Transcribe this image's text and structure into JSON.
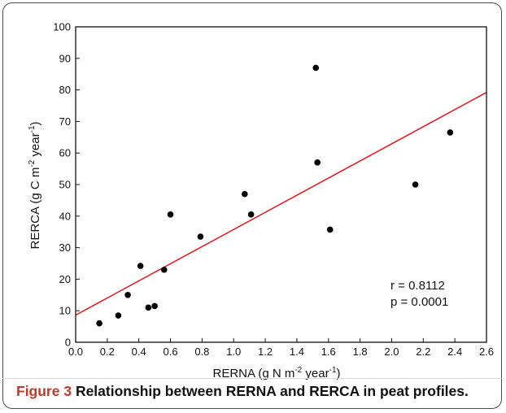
{
  "chart_data": {
    "type": "scatter",
    "xlabel": {
      "main": "RERNA (g N m",
      "sup1": "-2",
      "mid": " year",
      "sup2": "-1",
      "end": ")"
    },
    "ylabel": {
      "main": "RERCA (g C m",
      "sup1": "-2",
      "mid": " year",
      "sup2": "-1",
      "end": ")"
    },
    "xlim": [
      0.0,
      2.6
    ],
    "ylim": [
      0,
      100
    ],
    "xticks": [
      "0.0",
      "0.2",
      "0.4",
      "0.6",
      "0.8",
      "1.0",
      "1.2",
      "1.4",
      "1.6",
      "1.8",
      "2.0",
      "2.2",
      "2.4",
      "2.6"
    ],
    "yticks": [
      "0",
      "10",
      "20",
      "30",
      "40",
      "50",
      "60",
      "70",
      "80",
      "90",
      "100"
    ],
    "points": [
      {
        "x": 0.15,
        "y": 6
      },
      {
        "x": 0.27,
        "y": 8.5
      },
      {
        "x": 0.33,
        "y": 15
      },
      {
        "x": 0.41,
        "y": 24.2
      },
      {
        "x": 0.46,
        "y": 11
      },
      {
        "x": 0.5,
        "y": 11.5
      },
      {
        "x": 0.56,
        "y": 23
      },
      {
        "x": 0.6,
        "y": 40.5
      },
      {
        "x": 0.79,
        "y": 33.5
      },
      {
        "x": 1.07,
        "y": 47
      },
      {
        "x": 1.11,
        "y": 40.5
      },
      {
        "x": 1.52,
        "y": 87
      },
      {
        "x": 1.53,
        "y": 57
      },
      {
        "x": 1.61,
        "y": 35.7
      },
      {
        "x": 2.15,
        "y": 50
      },
      {
        "x": 2.37,
        "y": 66.5
      }
    ],
    "fit_line": {
      "x": [
        0.0,
        2.6
      ],
      "y": [
        8.6,
        79.2
      ],
      "color": "#e0191c"
    },
    "annotations": [
      "r = 0.8112",
      "p = 0.0001"
    ],
    "marker_color": "#000000"
  },
  "caption": {
    "lead": "Figure 3",
    "text": " Relationship between RERNA and RERCA in peat profiles."
  }
}
